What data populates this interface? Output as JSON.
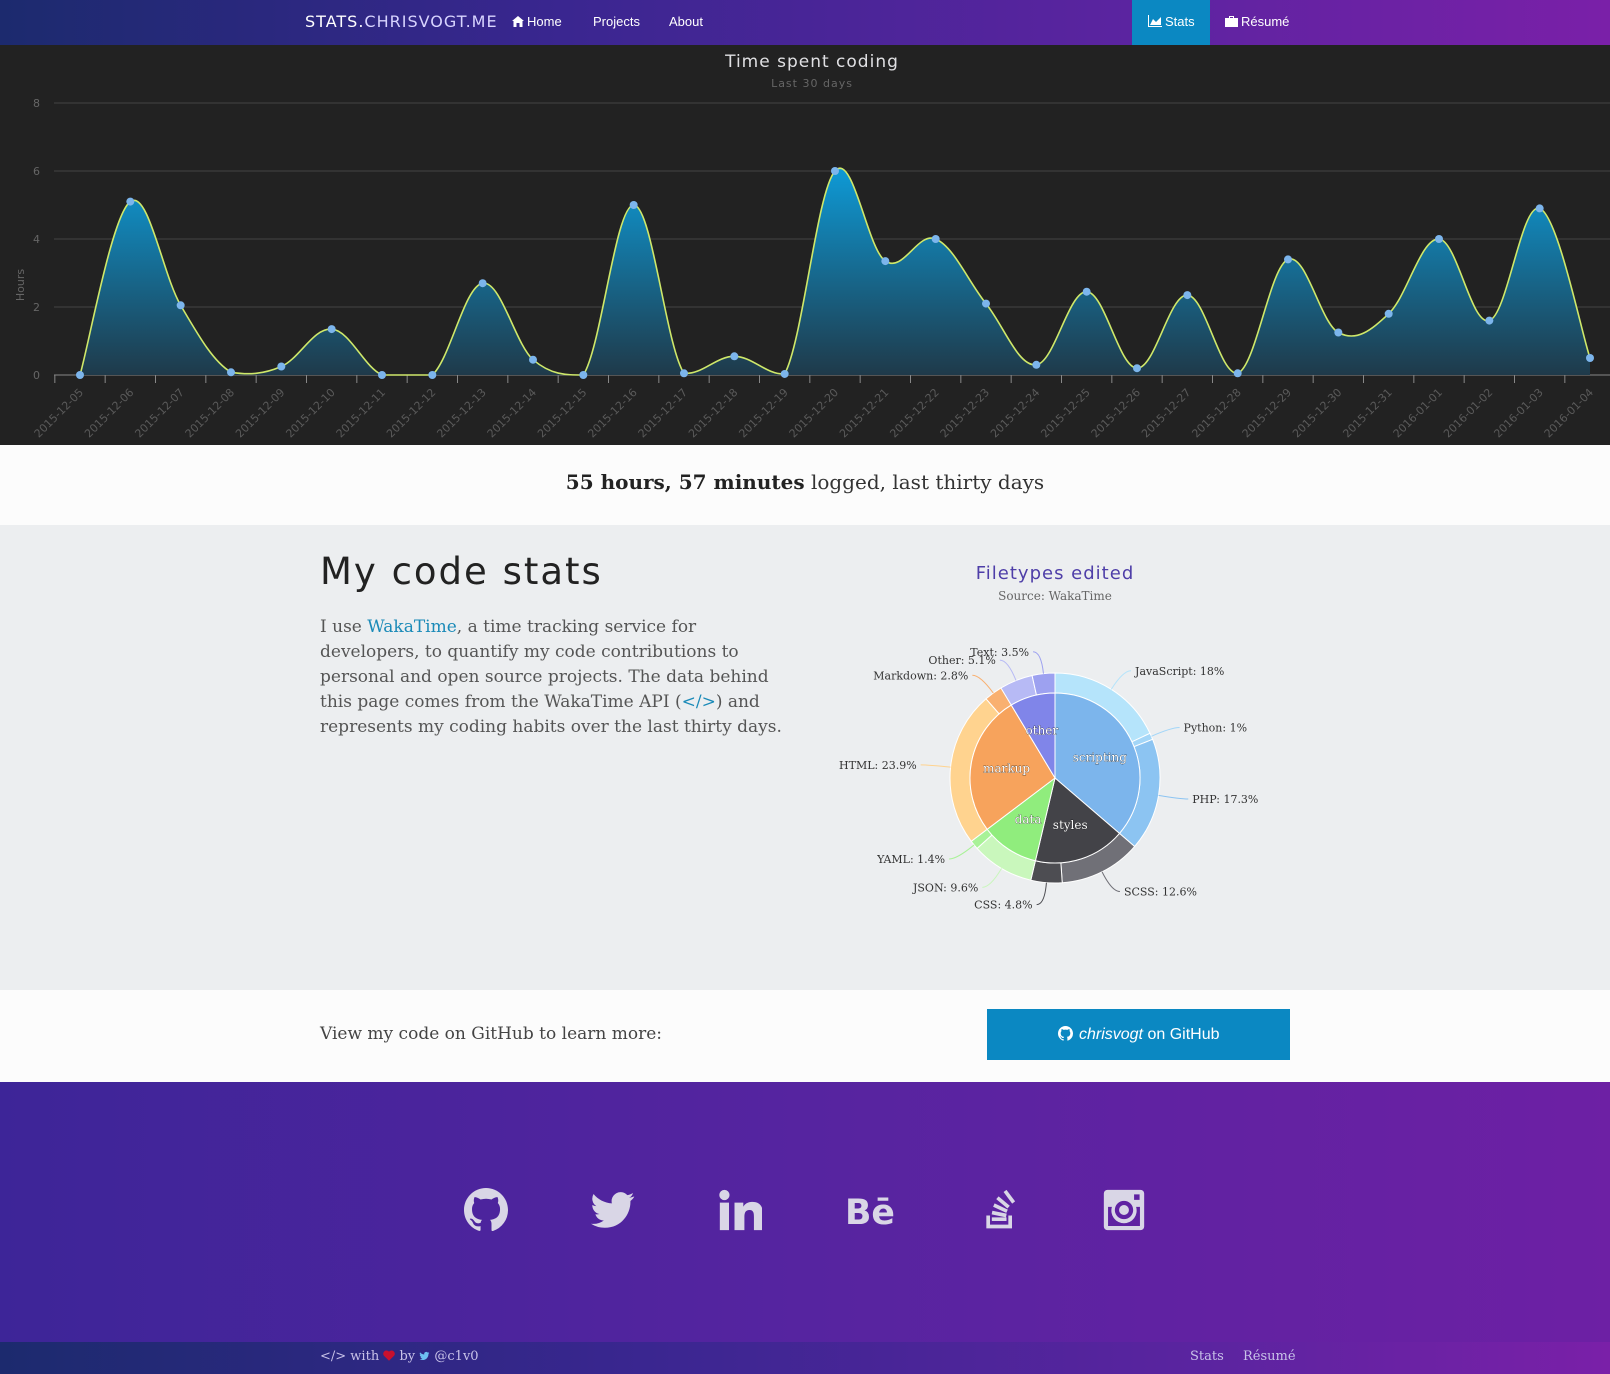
{
  "nav": {
    "brand_bold": "STATS.",
    "brand_rest": "CHRISVOGT.ME",
    "links": [
      "Home",
      "Projects",
      "About"
    ],
    "right": [
      "Stats",
      "Résumé"
    ]
  },
  "chart_data": [
    {
      "type": "area",
      "title": "Time spent coding",
      "subtitle": "Last 30 days",
      "ylabel": "Hours",
      "ylim": [
        0,
        8
      ],
      "yticks": [
        0,
        2,
        4,
        6,
        8
      ],
      "x": [
        "2015-12-05",
        "2015-12-06",
        "2015-12-07",
        "2015-12-08",
        "2015-12-09",
        "2015-12-10",
        "2015-12-11",
        "2015-12-12",
        "2015-12-13",
        "2015-12-14",
        "2015-12-15",
        "2015-12-16",
        "2015-12-17",
        "2015-12-18",
        "2015-12-19",
        "2015-12-20",
        "2015-12-21",
        "2015-12-22",
        "2015-12-23",
        "2015-12-24",
        "2015-12-25",
        "2015-12-26",
        "2015-12-27",
        "2015-12-28",
        "2015-12-29",
        "2015-12-30",
        "2015-12-31",
        "2016-01-01",
        "2016-01-02",
        "2016-01-03",
        "2016-01-04"
      ],
      "values": [
        0,
        5.1,
        2.05,
        0.08,
        0.25,
        1.35,
        0,
        0,
        2.7,
        0.45,
        0,
        5.0,
        0.05,
        0.55,
        0.03,
        6.0,
        3.35,
        4.0,
        2.1,
        0.3,
        2.45,
        0.2,
        2.35,
        0.05,
        3.4,
        1.25,
        1.8,
        4.0,
        1.6,
        4.9,
        0.5
      ],
      "grid": true,
      "colors": {
        "line": "#cfe86a",
        "fill_top": "#0e9ad6",
        "fill_bottom": "#1f3a4a",
        "point": "#7cb5ec"
      }
    },
    {
      "type": "pie",
      "title": "Filetypes edited",
      "subtitle": "Source: WakaTime",
      "inner": [
        {
          "name": "scripting",
          "value": 36.3,
          "color": "#7cb5ec"
        },
        {
          "name": "styles",
          "value": 17.4,
          "color": "#434348"
        },
        {
          "name": "data",
          "value": 11.0,
          "color": "#90ed7d"
        },
        {
          "name": "markup",
          "value": 26.7,
          "color": "#f7a35c"
        },
        {
          "name": "other",
          "value": 8.6,
          "color": "#8085e9"
        }
      ],
      "outer": [
        {
          "name": "JavaScript",
          "value": 18,
          "label": "JavaScript: 18%",
          "color": "#b5e4fb"
        },
        {
          "name": "Python",
          "value": 1,
          "label": "Python: 1%",
          "color": "#a3d6f8"
        },
        {
          "name": "PHP",
          "value": 17.3,
          "label": "PHP: 17.3%",
          "color": "#8cc4f2"
        },
        {
          "name": "SCSS",
          "value": 12.6,
          "label": "SCSS: 12.6%",
          "color": "#707077"
        },
        {
          "name": "CSS",
          "value": 4.8,
          "label": "CSS: 4.8%",
          "color": "#4d4d52"
        },
        {
          "name": "JSON",
          "value": 9.6,
          "label": "JSON: 9.6%",
          "color": "#c9f7bc"
        },
        {
          "name": "YAML",
          "value": 1.4,
          "label": "YAML: 1.4%",
          "color": "#a8f297"
        },
        {
          "name": "HTML",
          "value": 23.9,
          "label": "HTML: 23.9%",
          "color": "#ffd38f"
        },
        {
          "name": "Markdown",
          "value": 2.8,
          "label": "Markdown: 2.8%",
          "color": "#f9b070"
        },
        {
          "name": "Other",
          "value": 5.1,
          "label": "Other: 5.1%",
          "color": "#b7baf5"
        },
        {
          "name": "Text",
          "value": 3.5,
          "label": "Text: 3.5%",
          "color": "#9da1f0"
        }
      ]
    }
  ],
  "summary": {
    "bold": "55 hours, 57 minutes",
    "rest": " logged, last thirty days"
  },
  "stats": {
    "heading": "My code stats",
    "p1": "I use ",
    "link": "WakaTime",
    "p2": ", a time tracking service for developers, to quantify my code contributions to personal and open source projects. The data behind this page comes from the WakaTime API (",
    "api_link": "</>",
    "p3": ") and represents my coding habits over the last thirty days."
  },
  "github": {
    "text": "View my code on GitHub to learn more:",
    "button_user": "chrisvogt",
    "button_rest": " on GitHub"
  },
  "footer": {
    "social": [
      "github-icon",
      "twitter-icon",
      "linkedin-icon",
      "behance-icon",
      "stackoverflow-icon",
      "instagram-icon"
    ],
    "credit_code": "</>",
    "credit_with": " with ",
    "credit_by": " by ",
    "credit_handle": "@c1v0",
    "links": [
      "Stats",
      "Résumé"
    ]
  }
}
